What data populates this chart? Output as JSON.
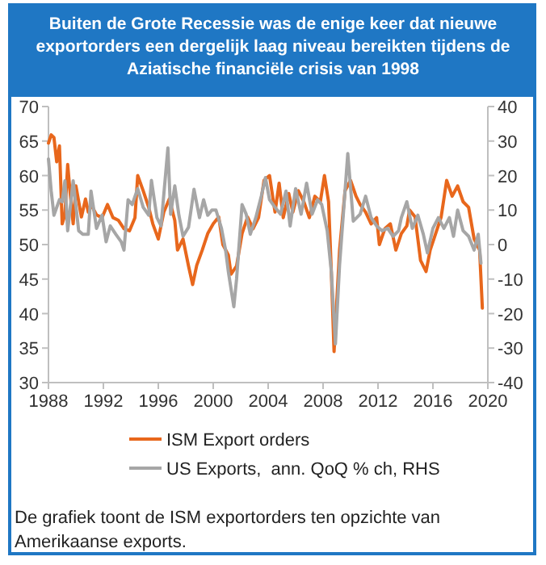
{
  "chart_data": {
    "type": "line",
    "title": "Buiten de Grote Recessie was de enige keer dat nieuwe exportorders een dergelijk laag niveau bereikten tijdens de Aziatische financiële crisis van 1998",
    "xlim": [
      1988,
      2020
    ],
    "xticks": [
      1988,
      1992,
      1996,
      2000,
      2004,
      2008,
      2012,
      2016,
      2020
    ],
    "ylim": [
      30,
      70
    ],
    "yticks": [
      30,
      35,
      40,
      45,
      50,
      55,
      60,
      65,
      70
    ],
    "y2lim": [
      -40,
      40
    ],
    "y2ticks": [
      -40,
      -30,
      -20,
      -10,
      0,
      10,
      20,
      30,
      40
    ],
    "legend": "bottom",
    "grid": false,
    "marker": "none",
    "line_style": "solid",
    "annotations": [
      "De grafiek toont de ISM exportorders ten opzichte van Amerikaanse exports."
    ],
    "series": [
      {
        "name": "ISM Export orders",
        "color": "#e8671c",
        "x": [
          1988.0,
          1988.2,
          1988.4,
          1988.6,
          1988.8,
          1989.0,
          1989.2,
          1989.4,
          1989.6,
          1989.8,
          1990.0,
          1990.4,
          1990.7,
          1990.9,
          1991.1,
          1991.5,
          1991.9,
          1992.3,
          1992.7,
          1993.1,
          1993.5,
          1993.9,
          1994.3,
          1994.5,
          1994.9,
          1995.3,
          1995.6,
          1996.0,
          1996.4,
          1996.8,
          1997.2,
          1997.4,
          1997.8,
          1998.2,
          1998.5,
          1998.8,
          1999.2,
          1999.6,
          2000.0,
          2000.4,
          2000.7,
          2001.1,
          2001.3,
          2001.7,
          2002.1,
          2002.5,
          2002.9,
          2003.3,
          2003.7,
          2004.1,
          2004.5,
          2004.8,
          2005.1,
          2005.5,
          2005.8,
          2006.2,
          2006.6,
          2007.0,
          2007.4,
          2007.8,
          2008.1,
          2008.4,
          2008.6,
          2008.8,
          2009.2,
          2009.6,
          2010.0,
          2010.4,
          2010.7,
          2011.1,
          2011.5,
          2011.9,
          2012.1,
          2012.5,
          2012.9,
          2013.3,
          2013.7,
          2014.1,
          2014.3,
          2014.7,
          2015.1,
          2015.5,
          2015.8,
          2016.2,
          2016.6,
          2017.0,
          2017.4,
          2017.8,
          2018.2,
          2018.6,
          2019.0,
          2019.4,
          2019.6
        ],
        "values": [
          64.7,
          65.9,
          65.5,
          62,
          64.3,
          53,
          54.3,
          61.6,
          57,
          53,
          58.5,
          54,
          56.6,
          54.7,
          55.8,
          54.3,
          53.9,
          55.8,
          53.9,
          53.5,
          52.3,
          52,
          53.9,
          60,
          57.8,
          55.4,
          53,
          50.8,
          54.7,
          56.6,
          53.5,
          49.2,
          50.8,
          46.9,
          44.2,
          47,
          49.2,
          51.6,
          53,
          54,
          50,
          48.5,
          45.7,
          46.9,
          51.6,
          54,
          52.3,
          53.9,
          59.3,
          60,
          54.7,
          58.9,
          53.9,
          57.4,
          54.7,
          57.8,
          56.2,
          53.9,
          57,
          56.2,
          60,
          56.2,
          46.1,
          34.5,
          49.2,
          57.8,
          59.3,
          57,
          55.8,
          54.7,
          53,
          53.9,
          50,
          52.3,
          53,
          49.2,
          51.6,
          52.7,
          55,
          54,
          47.7,
          46.1,
          49.2,
          51.6,
          54,
          59.3,
          57,
          58.5,
          56.2,
          55.4,
          50.8,
          49.2,
          40.8
        ]
      },
      {
        "name": "US Exports,  ann. QoQ % ch, RHS",
        "color": "#a6a6a6",
        "axis": "y2",
        "x": [
          1988.0,
          1988.2,
          1988.4,
          1988.8,
          1989.0,
          1989.2,
          1989.4,
          1989.8,
          1990.2,
          1990.5,
          1990.9,
          1991.1,
          1991.5,
          1991.9,
          1992.2,
          1992.5,
          1992.9,
          1993.3,
          1993.5,
          1993.8,
          1994.1,
          1994.5,
          1994.9,
          1995.3,
          1995.5,
          1995.9,
          1996.2,
          1996.7,
          1996.9,
          1997.2,
          1997.5,
          1997.8,
          1998.2,
          1998.6,
          1999.0,
          1999.3,
          1999.6,
          1999.9,
          2000.2,
          2000.6,
          2000.9,
          2001.1,
          2001.5,
          2001.7,
          2002.1,
          2002.4,
          2002.7,
          2003.1,
          2003.5,
          2003.8,
          2004.1,
          2004.5,
          2004.9,
          2005.3,
          2005.6,
          2006.0,
          2006.4,
          2006.8,
          2007.2,
          2007.6,
          2007.9,
          2008.3,
          2008.6,
          2008.9,
          2009.2,
          2009.6,
          2009.8,
          2010.2,
          2010.7,
          2011.1,
          2011.5,
          2011.9,
          2012.3,
          2012.7,
          2013.1,
          2013.5,
          2013.7,
          2014.1,
          2014.5,
          2014.9,
          2015.3,
          2015.6,
          2016.0,
          2016.4,
          2016.8,
          2017.2,
          2017.5,
          2017.8,
          2018.2,
          2018.6,
          2019.0,
          2019.3,
          2019.5
        ],
        "values": [
          24.8,
          15.5,
          8.5,
          13,
          12.4,
          18.5,
          4,
          18.5,
          4,
          3,
          3,
          15.5,
          4.7,
          8.5,
          0.8,
          5.4,
          3,
          0.8,
          -1.6,
          13,
          11.6,
          16.2,
          10.8,
          8.5,
          18.6,
          7.8,
          5.4,
          28,
          8.8,
          17,
          8.5,
          2.4,
          5,
          16,
          7.8,
          13,
          8.5,
          10,
          10,
          4.7,
          -1.6,
          -7.8,
          -18,
          -10,
          11.6,
          8.8,
          3,
          7.8,
          14,
          19.4,
          13,
          10.8,
          8.8,
          15.5,
          5.4,
          16.2,
          8.8,
          17.8,
          8.8,
          13,
          11.6,
          4,
          -7.8,
          -28.8,
          -6,
          15.5,
          26.4,
          6.8,
          8.8,
          14,
          7.8,
          5.4,
          4,
          4.7,
          2.4,
          4,
          7.8,
          12.4,
          4.7,
          8.5,
          3,
          -2.4,
          4.7,
          7.8,
          4.7,
          7.8,
          2.4,
          10,
          4,
          2.4,
          -1.6,
          3,
          -5.4
        ]
      }
    ]
  }
}
